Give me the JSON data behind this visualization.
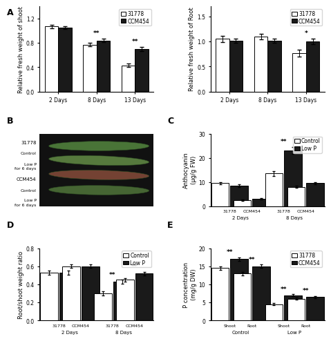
{
  "panel_A_left": {
    "ylabel": "Relative fresh weight of shoot",
    "groups": [
      "2 Days",
      "8 Days",
      "13 Days"
    ],
    "bar1_values": [
      1.07,
      0.77,
      0.43
    ],
    "bar2_values": [
      1.05,
      0.84,
      0.7
    ],
    "bar1_err": [
      0.03,
      0.03,
      0.03
    ],
    "bar2_err": [
      0.02,
      0.03,
      0.03
    ],
    "ylim": [
      0,
      1.4
    ],
    "yticks": [
      0,
      0.4,
      0.8,
      1.2
    ],
    "sig_labels": [
      "",
      "**",
      "**"
    ],
    "legend": [
      "31778",
      "CCM454"
    ]
  },
  "panel_A_right": {
    "ylabel": "Relative fresh weight of Root",
    "groups": [
      "2 Days",
      "8 Days",
      "13 Days"
    ],
    "bar1_values": [
      1.05,
      1.1,
      0.77
    ],
    "bar2_values": [
      1.02,
      1.02,
      1.0
    ],
    "bar1_err": [
      0.06,
      0.06,
      0.07
    ],
    "bar2_err": [
      0.04,
      0.04,
      0.06
    ],
    "ylim": [
      0,
      1.7
    ],
    "yticks": [
      0,
      0.5,
      1.0,
      1.5
    ],
    "sig_labels": [
      "",
      "",
      "*"
    ],
    "legend": [
      "31778",
      "CCM454"
    ]
  },
  "panel_C": {
    "ylabel": "Anthocyanin\n(μg/g FW)",
    "groups_main": [
      "2 Days",
      "8 Days"
    ],
    "subgroups": [
      "31778",
      "CCM454",
      "31778",
      "CCM454"
    ],
    "bar1_values": [
      9.5,
      2.5,
      13.5,
      8.0
    ],
    "bar2_values": [
      8.5,
      3.0,
      23.0,
      9.5
    ],
    "bar1_err": [
      0.5,
      0.3,
      1.0,
      0.5
    ],
    "bar2_err": [
      0.5,
      0.3,
      1.5,
      0.5
    ],
    "ylim": [
      0,
      30
    ],
    "yticks": [
      0,
      10,
      20,
      30
    ],
    "sig_labels": [
      "",
      "",
      "**",
      ""
    ],
    "legend": [
      "Control",
      "Low P"
    ]
  },
  "panel_D": {
    "ylabel": "Root/shoot weight ratio",
    "groups_main": [
      "2 Days",
      "8 Days"
    ],
    "subgroups": [
      "31778",
      "CCM454",
      "31778",
      "CCM454"
    ],
    "bar1_values": [
      0.53,
      0.6,
      0.3,
      0.45
    ],
    "bar2_values": [
      0.53,
      0.6,
      0.43,
      0.52
    ],
    "bar1_err": [
      0.02,
      0.02,
      0.02,
      0.02
    ],
    "bar2_err": [
      0.02,
      0.02,
      0.02,
      0.02
    ],
    "ylim": [
      0,
      0.8
    ],
    "yticks": [
      0,
      0.2,
      0.4,
      0.6,
      0.8
    ],
    "sig_labels": [
      "",
      "",
      "**",
      "**"
    ],
    "legend": [
      "Control",
      "Low P"
    ]
  },
  "panel_E": {
    "ylabel": "P concentration\n(mg/g DW)",
    "groups_main": [
      "Control",
      "Low P"
    ],
    "subgroups": [
      "Shoot",
      "Root",
      "Shoot",
      "Root"
    ],
    "bar1_values": [
      14.5,
      13.0,
      4.5,
      6.0
    ],
    "bar2_values": [
      17.0,
      15.0,
      7.0,
      6.5
    ],
    "bar1_err": [
      0.5,
      0.5,
      0.3,
      0.3
    ],
    "bar2_err": [
      0.5,
      0.5,
      0.3,
      0.3
    ],
    "ylim": [
      0,
      20
    ],
    "yticks": [
      0,
      5,
      10,
      15,
      20
    ],
    "sig_labels": [
      "**",
      "**",
      "**",
      "**"
    ],
    "legend": [
      "31778",
      "CCM454"
    ]
  },
  "bar_width": 0.35,
  "bar_color_white": "#ffffff",
  "bar_color_black": "#1a1a1a",
  "bar_edge_color": "#000000",
  "font_size_label": 6,
  "font_size_tick": 5.5,
  "font_size_legend": 5.5,
  "font_size_panel": 9,
  "fig_bg": "#ffffff"
}
